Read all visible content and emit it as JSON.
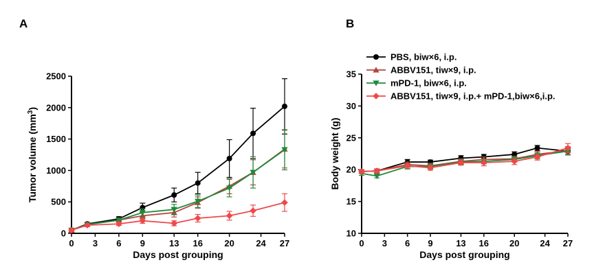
{
  "panels": {
    "A": {
      "label": "A"
    },
    "B": {
      "label": "B"
    }
  },
  "legend": {
    "placement": "top-left of panel B",
    "items": [
      "PBS, biw×6, i.p.",
      "ABBV151, tiw×9, i.p.",
      "mPD-1, biw×6, i.p.",
      "ABBV151, tiw×9, i.p.+ mPD-1,biw×6,i.p."
    ]
  },
  "series_styles": [
    {
      "color": "#000000",
      "marker": "circle"
    },
    {
      "color": "#b5443c",
      "marker": "triangle-up"
    },
    {
      "color": "#1e8a3a",
      "marker": "triangle-down"
    },
    {
      "color": "#f0484a",
      "marker": "diamond"
    }
  ],
  "chart_data": [
    {
      "type": "line",
      "panel": "A",
      "xlabel": "Days post grouping",
      "ylabel_main": "Tumor volume (mm",
      "ylabel_sup": "3",
      "ylabel_end": ")",
      "xlim": [
        0,
        27
      ],
      "ylim": [
        0,
        2500
      ],
      "xticks": [
        0,
        3,
        6,
        9,
        13,
        16,
        20,
        24,
        27
      ],
      "yticks": [
        0,
        500,
        1000,
        1500,
        2000,
        2500
      ],
      "x": [
        0,
        2,
        6,
        9,
        13,
        16,
        20,
        23,
        27
      ],
      "grid": false,
      "series": [
        {
          "values": [
            50,
            150,
            230,
            410,
            610,
            800,
            1190,
            1590,
            2020
          ],
          "errors": [
            20,
            25,
            35,
            70,
            110,
            170,
            300,
            400,
            440
          ]
        },
        {
          "values": [
            50,
            140,
            210,
            280,
            330,
            490,
            750,
            970,
            1340
          ],
          "errors": [
            20,
            25,
            30,
            50,
            70,
            90,
            120,
            200,
            300
          ]
        },
        {
          "values": [
            50,
            140,
            210,
            330,
            380,
            510,
            720,
            970,
            1330
          ],
          "errors": [
            20,
            25,
            30,
            60,
            80,
            100,
            140,
            250,
            320
          ]
        },
        {
          "values": [
            50,
            130,
            150,
            200,
            160,
            240,
            280,
            360,
            490
          ],
          "errors": [
            20,
            20,
            25,
            40,
            40,
            60,
            70,
            90,
            140
          ]
        }
      ]
    },
    {
      "type": "line",
      "panel": "B",
      "xlabel": "Days post grouping",
      "ylabel_main": "Body weight (g)",
      "xlim": [
        0,
        27
      ],
      "ylim": [
        10,
        35
      ],
      "xticks": [
        0,
        3,
        6,
        9,
        13,
        16,
        20,
        24,
        27
      ],
      "yticks": [
        10,
        15,
        20,
        25,
        30,
        35
      ],
      "x": [
        0,
        2,
        6,
        9,
        13,
        16,
        20,
        23,
        27
      ],
      "grid": false,
      "series": [
        {
          "values": [
            19.7,
            19.8,
            21.2,
            21.2,
            21.8,
            22.0,
            22.4,
            23.4,
            22.9
          ],
          "errors": [
            0.3,
            0.3,
            0.4,
            0.3,
            0.4,
            0.4,
            0.4,
            0.4,
            0.6
          ]
        },
        {
          "values": [
            19.7,
            19.8,
            20.8,
            20.6,
            21.3,
            21.6,
            21.7,
            22.4,
            23.0
          ],
          "errors": [
            0.3,
            0.3,
            0.4,
            0.4,
            0.4,
            0.4,
            0.4,
            0.5,
            0.6
          ]
        },
        {
          "values": [
            19.4,
            19.0,
            20.5,
            20.5,
            21.2,
            21.3,
            21.6,
            22.2,
            22.9
          ],
          "errors": [
            0.3,
            0.3,
            0.4,
            0.4,
            0.4,
            0.4,
            0.4,
            0.5,
            0.6
          ]
        },
        {
          "values": [
            19.7,
            19.8,
            20.6,
            20.3,
            21.1,
            21.1,
            21.3,
            22.0,
            23.4
          ],
          "errors": [
            0.3,
            0.3,
            0.4,
            0.4,
            0.4,
            0.5,
            0.5,
            0.5,
            0.7
          ]
        }
      ]
    }
  ]
}
